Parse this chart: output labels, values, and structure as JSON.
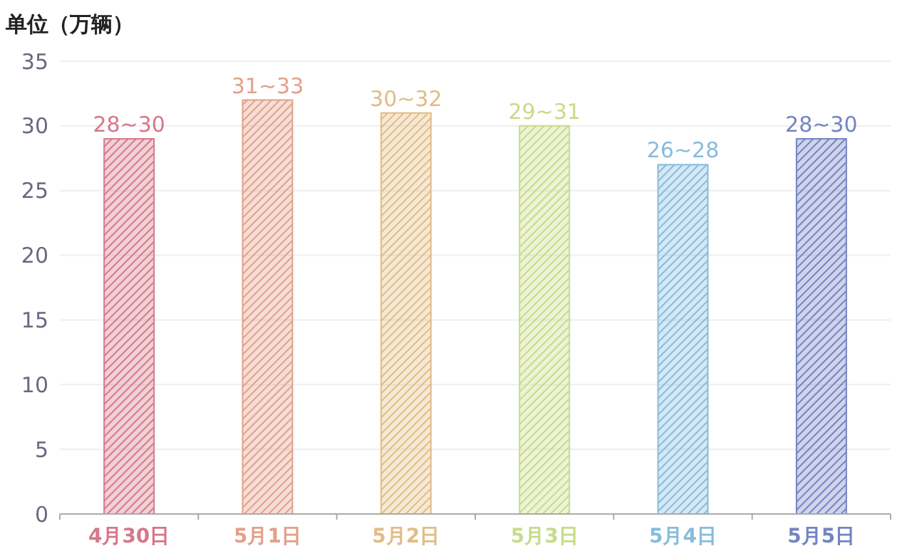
{
  "chart_data": {
    "type": "bar",
    "ylabel": "单位（万辆）",
    "categories": [
      "4月30日",
      "5月1日",
      "5月2日",
      "5月3日",
      "5月4日",
      "5月5日"
    ],
    "values": [
      29,
      32,
      31,
      30,
      27,
      29
    ],
    "colors": [
      "#d5788a",
      "#e3a08a",
      "#e2bc86",
      "#c8db88",
      "#86bcdc",
      "#7484c2"
    ],
    "annotations": [
      {
        "text": "28~30",
        "x": "4月30日",
        "y": 29
      },
      {
        "text": "31~33",
        "x": "5月1日",
        "y": 32
      },
      {
        "text": "30~32",
        "x": "5月2日",
        "y": 31
      },
      {
        "text": "29~31",
        "x": "5月3日",
        "y": 30
      },
      {
        "text": "26~28",
        "x": "5月4日",
        "y": 27
      },
      {
        "text": "28~30",
        "x": "5月5日",
        "y": 29
      }
    ],
    "ylim": [
      0,
      35
    ],
    "yticks": [
      0,
      5,
      10,
      15,
      20,
      25,
      30,
      35
    ],
    "grid": "y"
  }
}
